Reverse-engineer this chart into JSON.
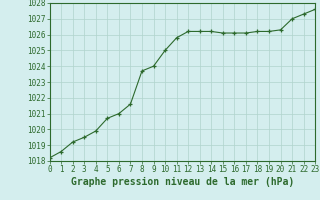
{
  "x": [
    0,
    1,
    2,
    3,
    4,
    5,
    6,
    7,
    8,
    9,
    10,
    11,
    12,
    13,
    14,
    15,
    16,
    17,
    18,
    19,
    20,
    21,
    22,
    23
  ],
  "y": [
    1018.2,
    1018.6,
    1019.2,
    1019.5,
    1019.9,
    1020.7,
    1021.0,
    1021.6,
    1023.7,
    1024.0,
    1025.0,
    1025.8,
    1026.2,
    1026.2,
    1026.2,
    1026.1,
    1026.1,
    1026.1,
    1026.2,
    1026.2,
    1026.3,
    1027.0,
    1027.3,
    1027.6
  ],
  "line_color": "#2d6a2d",
  "marker": "+",
  "marker_size": 3,
  "background_color": "#d4eeee",
  "grid_color": "#b0d4cc",
  "xlabel": "Graphe pression niveau de la mer (hPa)",
  "ylim_min": 1018,
  "ylim_max": 1028,
  "yticks": [
    1018,
    1019,
    1020,
    1021,
    1022,
    1023,
    1024,
    1025,
    1026,
    1027,
    1028
  ],
  "xtick_labels": [
    "0",
    "1",
    "2",
    "3",
    "4",
    "5",
    "6",
    "7",
    "8",
    "9",
    "10",
    "11",
    "12",
    "13",
    "14",
    "15",
    "16",
    "17",
    "18",
    "19",
    "20",
    "21",
    "22",
    "23"
  ],
  "tick_fontsize": 5.5,
  "label_fontsize": 7
}
